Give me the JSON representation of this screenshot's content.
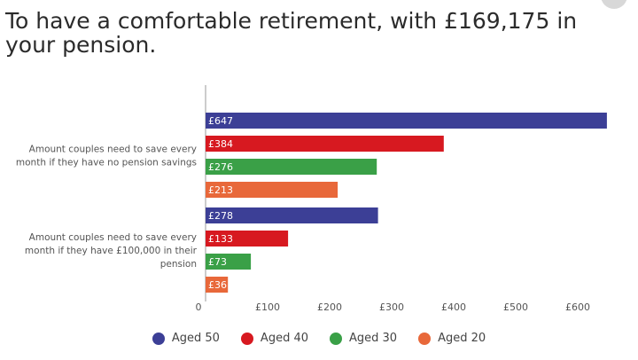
{
  "header": {
    "title": "To have a comfortable retirement, with £169,175 in your pension."
  },
  "chart_data": {
    "type": "bar",
    "orientation": "horizontal",
    "title": "To have a comfortable retirement, with £169,175 in your pension.",
    "categories": [
      "Amount couples need to save every month if they have no pension savings",
      "Amount couples need to save every month if they have £100,000 in their pension"
    ],
    "category_lines": [
      [
        "Amount couples need to save every",
        "month if they have no pension savings"
      ],
      [
        "Amount couples need to save every",
        "month if they have £100,000 in their",
        "pension"
      ]
    ],
    "series": [
      {
        "name": "Aged 50",
        "color": "#3c3f96",
        "values": [
          647,
          278
        ],
        "labels": [
          "£647",
          "£278"
        ]
      },
      {
        "name": "Aged 40",
        "color": "#d71920",
        "values": [
          384,
          133
        ],
        "labels": [
          "£384",
          "£133"
        ]
      },
      {
        "name": "Aged 30",
        "color": "#3aa047",
        "values": [
          276,
          73
        ],
        "labels": [
          "£276",
          "£73"
        ]
      },
      {
        "name": "Aged 20",
        "color": "#e8683a",
        "values": [
          213,
          36
        ],
        "labels": [
          "£213",
          "£36"
        ]
      }
    ],
    "xlim": [
      0,
      650
    ],
    "x_ticks": [
      0,
      100,
      200,
      300,
      400,
      500,
      600
    ],
    "x_tick_labels": [
      "0",
      "£100",
      "£200",
      "£300",
      "£400",
      "£500",
      "£600"
    ],
    "xlabel": "",
    "ylabel": "",
    "grid": false,
    "legend_position": "bottom"
  }
}
